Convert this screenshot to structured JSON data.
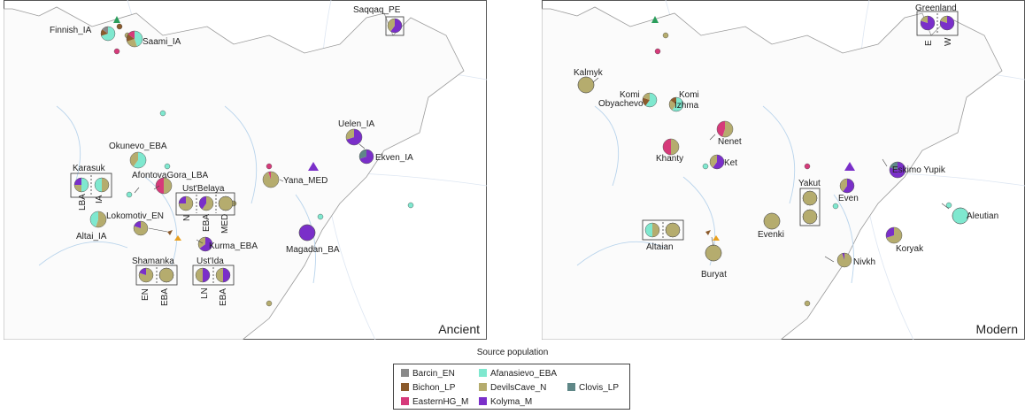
{
  "colors": {
    "Barcin_EN": "#8a8a8a",
    "Bichon_LP": "#8b5a2b",
    "EasternHG_M": "#d63a7a",
    "Afanasievo_EBA": "#7fe8cf",
    "DevilsCave_N": "#b5ac6e",
    "Kolyma_M": "#7a2fc9",
    "Clovis_LP": "#5f8787"
  },
  "panels": [
    {
      "key": "ancient",
      "title": "Ancient",
      "labels": [
        "Finnish_IA",
        "Saami_IA",
        "Saqqaq_PE",
        "Okunevo_EBA",
        "Karasuk",
        "LBA",
        "IA",
        "AfontovaGora_LBA",
        "Ust'Belaya",
        "N",
        "EBA",
        "MED",
        "Lokomotiv_EN",
        "Altai_IA",
        "Kurma_EBA",
        "Shamanka",
        "EN",
        "EBA",
        "Ust'Ida",
        "LN",
        "EBA",
        "Uelen_IA",
        "Ekven_IA",
        "Yana_MED",
        "Magadan_BA"
      ]
    },
    {
      "key": "modern",
      "title": "Modern",
      "labels": [
        "Greenland",
        "E",
        "W",
        "Kalmyk",
        "Komi",
        "Obyachevo",
        "Komi",
        "Izhma",
        "Nenet",
        "Khanty",
        "Ket",
        "Eskimo Yupik",
        "Yakut",
        "Even",
        "Aleutian",
        "Altaian",
        "Evenki",
        "Buryat",
        "Koryak",
        "Nivkh"
      ]
    }
  ],
  "legend": {
    "title": "Source population",
    "items": [
      "Barcin_EN",
      "Bichon_LP",
      "EasternHG_M",
      "Afanasievo_EBA",
      "DevilsCave_N",
      "Kolyma_M",
      "Clovis_LP"
    ]
  }
}
